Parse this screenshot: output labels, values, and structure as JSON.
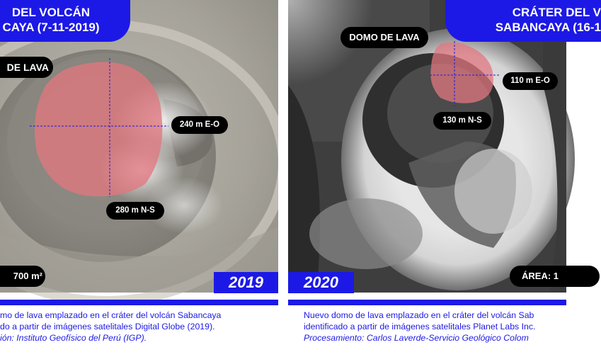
{
  "panel_2019": {
    "title_line1": "DEL VOLCÁN",
    "title_line2": "CAYA (7-11-2019)",
    "label_dome": "DE LAVA",
    "label_eo": "240 m E-O",
    "label_ns": "280 m N-S",
    "label_area": "700 m²",
    "year": "2019",
    "caption_line1": "mo de lava emplazado en el cráter del volcán Sabancaya",
    "caption_line2": "do a partir de imágenes satelitales Digital Globe (2019).",
    "caption_line3": "ión: Instituto Geofísico del Perú (IGP)."
  },
  "panel_2020": {
    "title_line1": "CRÁTER DEL V",
    "title_line2": "SABANCAYA (16-1",
    "label_dome": "DOMO DE LAVA",
    "label_eo": "110 m E-O",
    "label_ns": "130 m N-S",
    "label_area": "ÁREA: 1",
    "year": "2020",
    "caption_line1": "Nuevo domo de lava emplazado en el cráter del volcán Sab",
    "caption_line2": "identificado a partir de imágenes satelitales Planet Labs Inc.",
    "caption_line3": "Procesamiento: Carlos Laverde-Servicio Geológico Colom"
  },
  "colors": {
    "accent_blue": "#1c19e6",
    "dome_overlay": "#e0777f",
    "label_bg": "#000000"
  }
}
